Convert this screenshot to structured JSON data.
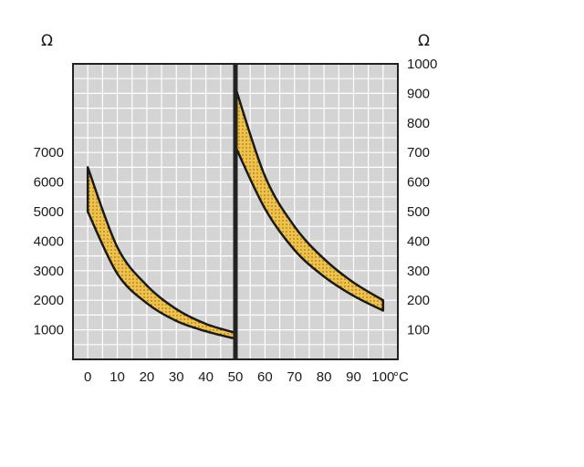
{
  "chart_data": {
    "type": "area",
    "title": "",
    "left_axis": {
      "unit": "Ω",
      "range": [
        0,
        10000
      ],
      "ticks": [
        "1000",
        "2000",
        "3000",
        "4000",
        "5000",
        "6000",
        "7000"
      ]
    },
    "right_axis": {
      "unit": "Ω",
      "range": [
        0,
        1000
      ],
      "ticks": [
        "100",
        "200",
        "300",
        "400",
        "500",
        "600",
        "700",
        "800",
        "900",
        "1000"
      ]
    },
    "x_axis": {
      "range": [
        -5,
        105
      ],
      "ticks": [
        "0",
        "10",
        "20",
        "30",
        "40",
        "50",
        "60",
        "70",
        "80",
        "90",
        "100"
      ],
      "unit": "°C"
    },
    "grid": true,
    "colors": {
      "band": "#f0c24a",
      "grid_bg": "#d4d4d4",
      "grid_line": "#ffffff",
      "ink": "#1a1a1a"
    },
    "series": [
      {
        "axis": "left",
        "x": [
          0,
          10,
          20,
          30,
          40,
          50
        ],
        "upper": [
          6500,
          3800,
          2500,
          1700,
          1200,
          900
        ],
        "lower": [
          5000,
          2900,
          1900,
          1300,
          950,
          700
        ]
      },
      {
        "axis": "right",
        "x": [
          50,
          60,
          70,
          80,
          90,
          100
        ],
        "upper": [
          920,
          620,
          450,
          340,
          260,
          200
        ],
        "lower": [
          720,
          510,
          370,
          280,
          215,
          165
        ]
      }
    ]
  }
}
